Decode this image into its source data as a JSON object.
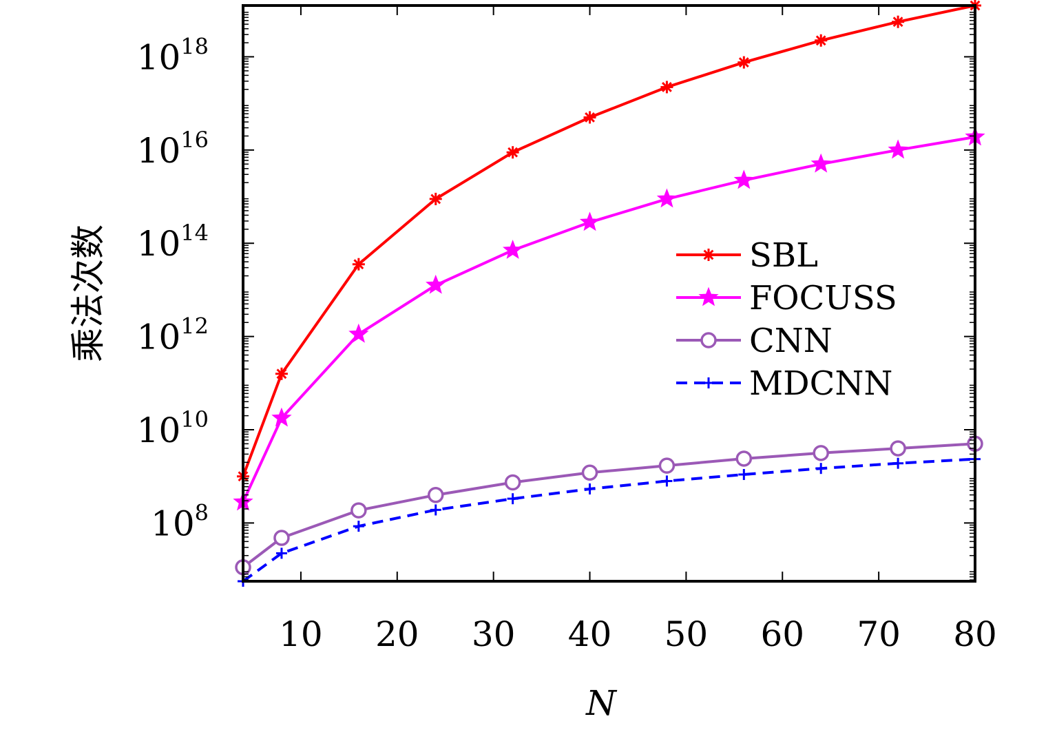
{
  "chart_data": {
    "type": "line",
    "title": "",
    "xlabel": "N",
    "ylabel": "乘法次数",
    "xlim": [
      4,
      80
    ],
    "ylim_log10": [
      6.75,
      19.1
    ],
    "y_scale": "log",
    "x_ticks": [
      10,
      20,
      30,
      40,
      50,
      60,
      70,
      80
    ],
    "y_ticks": [
      {
        "exp": 8,
        "base": "10",
        "sup": "8"
      },
      {
        "exp": 10,
        "base": "10",
        "sup": "10"
      },
      {
        "exp": 12,
        "base": "10",
        "sup": "12"
      },
      {
        "exp": 14,
        "base": "10",
        "sup": "14"
      },
      {
        "exp": 16,
        "base": "10",
        "sup": "16"
      },
      {
        "exp": 18,
        "base": "10",
        "sup": "18"
      }
    ],
    "grid": false,
    "legend_position": "center-right",
    "x": [
      4,
      8,
      16,
      24,
      32,
      40,
      48,
      56,
      64,
      72,
      80
    ],
    "series": [
      {
        "name": "SBL",
        "color": "#ff0000",
        "marker": "asterisk",
        "dash": "solid",
        "log10_values": [
          9.0,
          11.2,
          13.55,
          14.95,
          15.95,
          16.7,
          17.35,
          17.88,
          18.35,
          18.75,
          19.1
        ]
      },
      {
        "name": "FOCUSS",
        "color": "#ff00ff",
        "marker": "star",
        "dash": "solid",
        "log10_values": [
          8.45,
          10.25,
          12.05,
          13.1,
          13.85,
          14.45,
          14.95,
          15.35,
          15.7,
          16.0,
          16.28
        ]
      },
      {
        "name": "CNN",
        "color": "#9b59b6",
        "marker": "circle",
        "dash": "solid",
        "log10_values": [
          7.05,
          7.68,
          8.27,
          8.6,
          8.87,
          9.08,
          9.23,
          9.38,
          9.5,
          9.6,
          9.7
        ]
      },
      {
        "name": "MDCNN",
        "color": "#0000ff",
        "marker": "plus",
        "dash": "dashed",
        "log10_values": [
          6.75,
          7.35,
          7.93,
          8.28,
          8.52,
          8.73,
          8.9,
          9.04,
          9.17,
          9.28,
          9.37
        ]
      }
    ]
  }
}
